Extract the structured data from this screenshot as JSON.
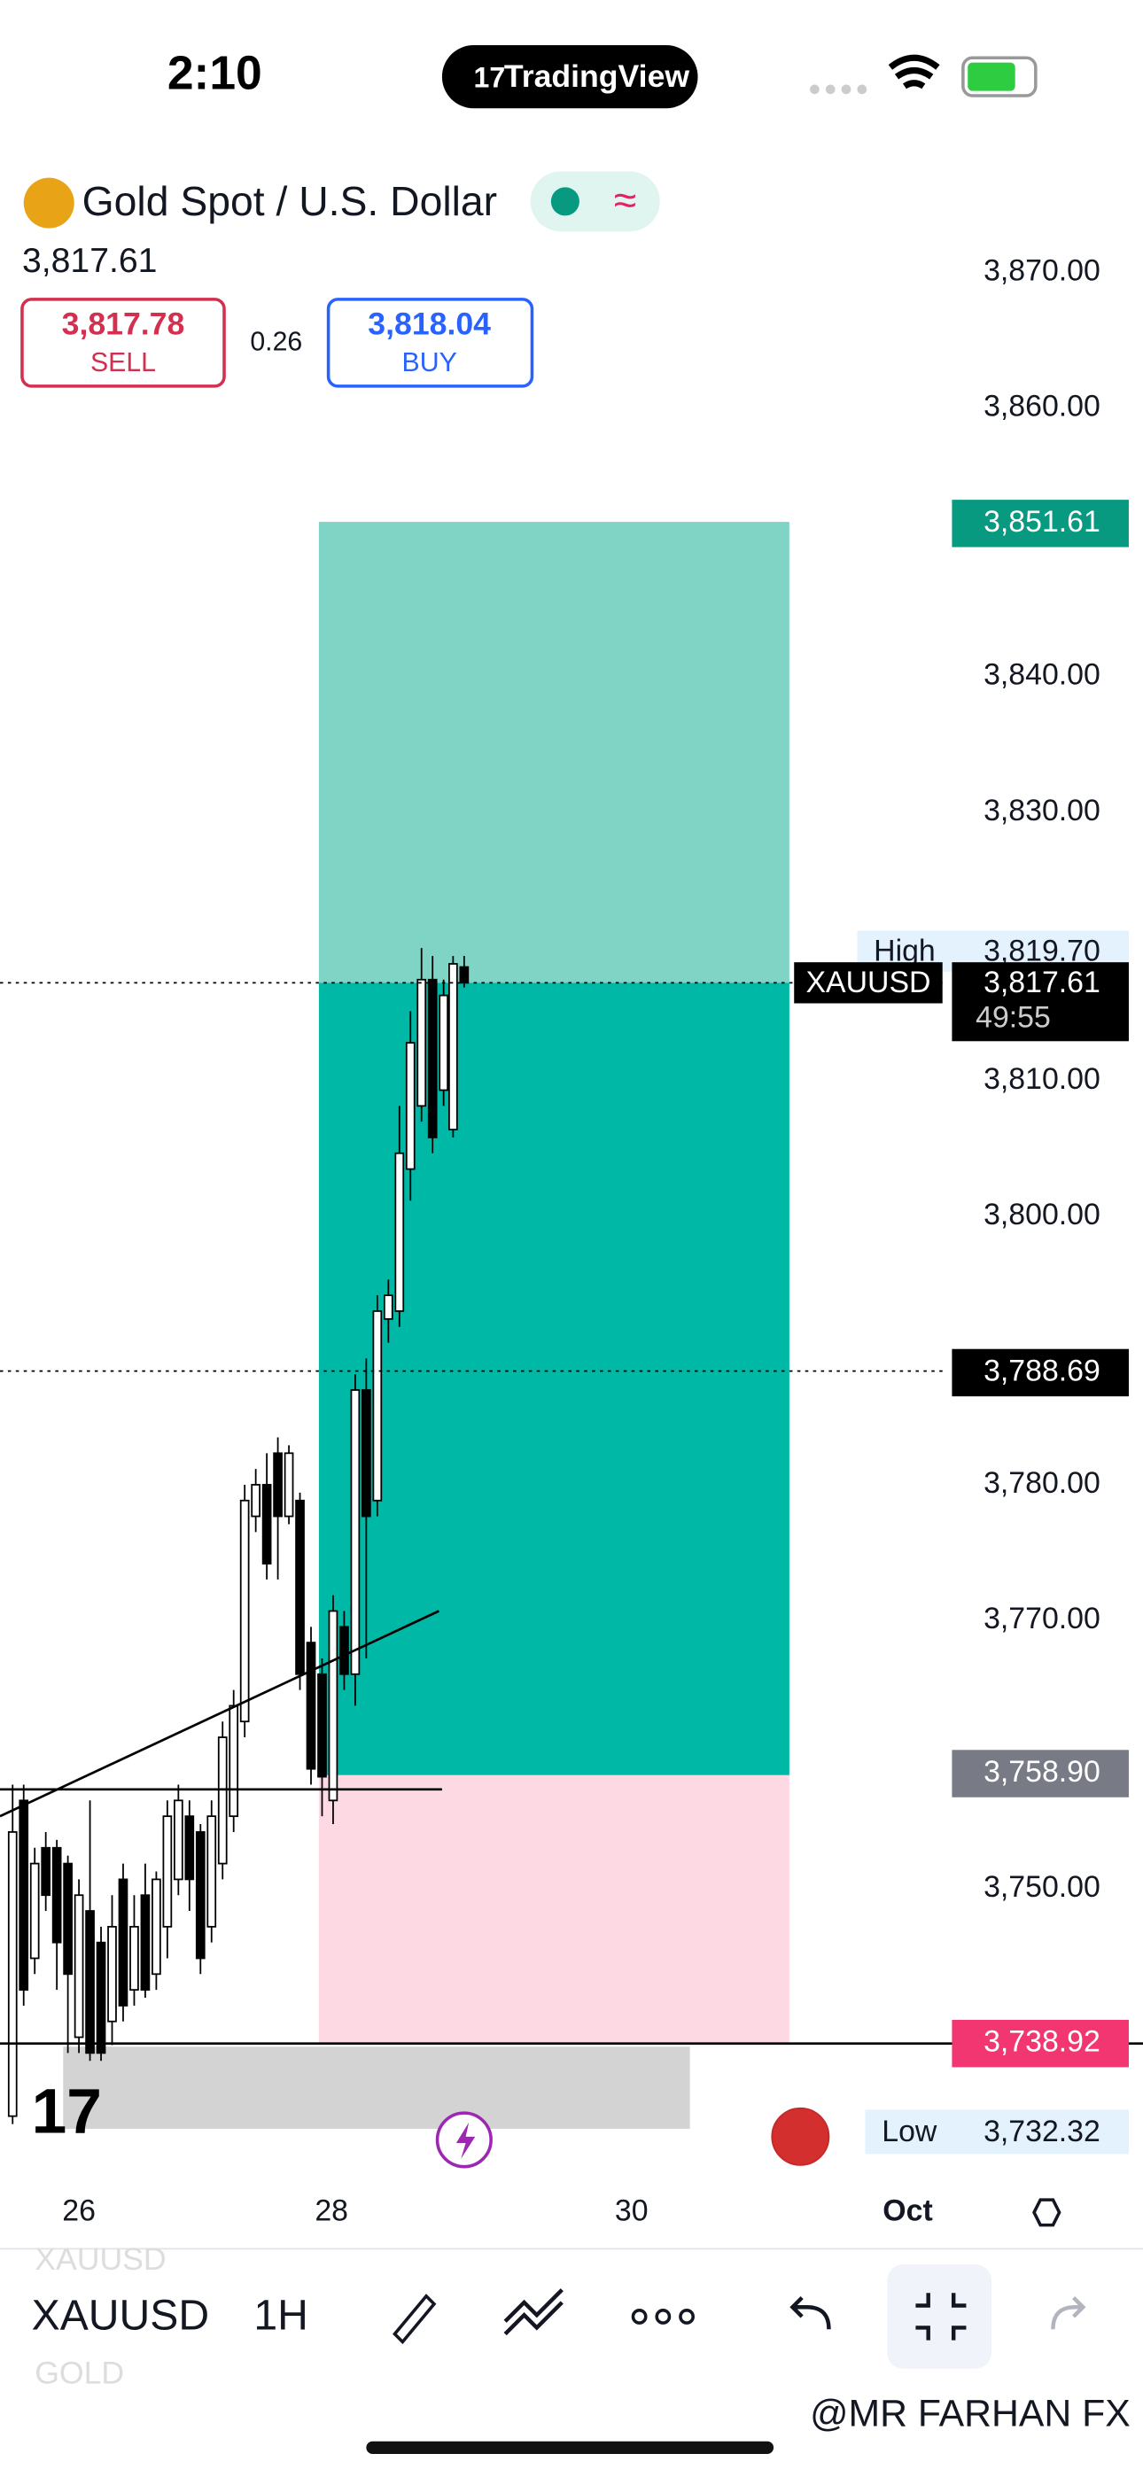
{
  "status": {
    "time": "2:10",
    "app": "TradingView"
  },
  "header": {
    "title": "Gold Spot / U.S. Dollar",
    "price": "3,817.61",
    "sell_price": "3,817.78",
    "sell_label": "SELL",
    "spread": "0.26",
    "buy_price": "3,818.04",
    "buy_label": "BUY"
  },
  "price_axis": [
    "3,870.00",
    "3,860.00",
    "3,840.00",
    "3,830.00",
    "3,810.00",
    "3,800.00",
    "3,780.00",
    "3,770.00",
    "3,750.00"
  ],
  "price_tags": {
    "target": "3,851.61",
    "symbol": "XAUUSD",
    "high_label": "High",
    "high": "3,819.70",
    "current": "3,817.61",
    "countdown": "49:55",
    "line": "3,788.69",
    "entry": "3,758.90",
    "stop": "3,738.92",
    "low_label": "Low",
    "low": "3,732.32"
  },
  "time_axis": [
    "26",
    "28",
    "30",
    "Oct"
  ],
  "toolbar": {
    "symbol": "XAUUSD",
    "interval": "1H",
    "faded_symbol": "XAUUSD",
    "faded_name": "GOLD"
  },
  "watermark": "@MR FARHAN FX"
}
